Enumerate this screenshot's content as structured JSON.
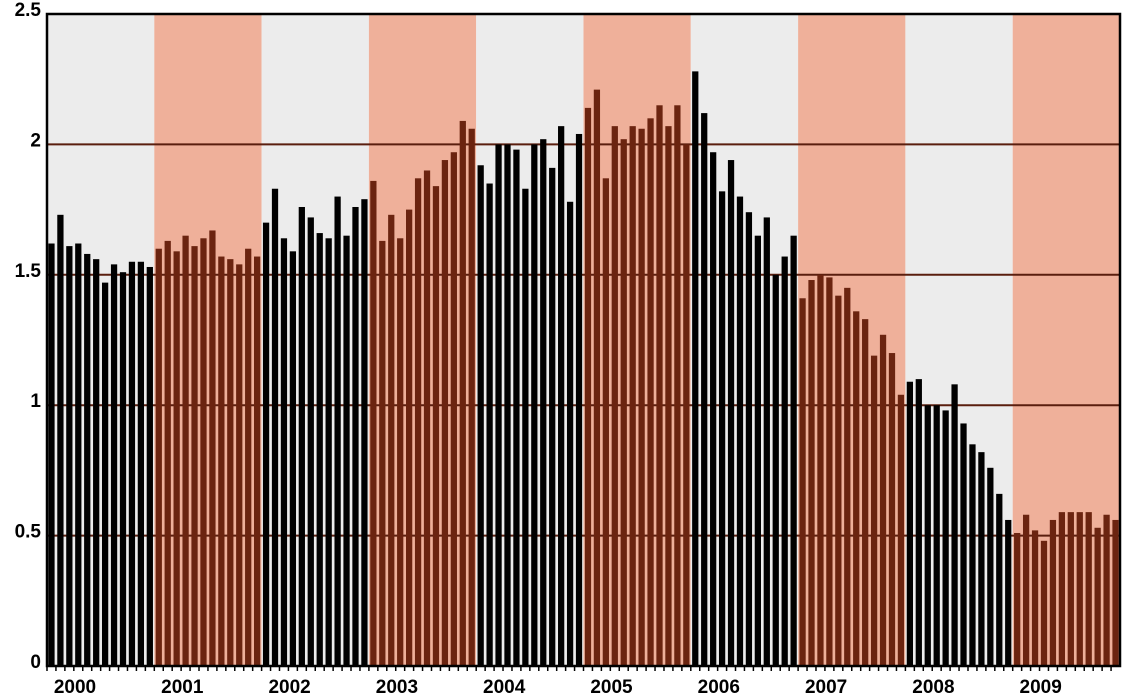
{
  "chart_data": {
    "type": "bar",
    "categories": [
      "2000",
      null,
      null,
      null,
      null,
      null,
      null,
      null,
      null,
      null,
      null,
      null,
      "2001",
      null,
      null,
      null,
      null,
      null,
      null,
      null,
      null,
      null,
      null,
      null,
      "2002",
      null,
      null,
      null,
      null,
      null,
      null,
      null,
      null,
      null,
      null,
      null,
      "2003",
      null,
      null,
      null,
      null,
      null,
      null,
      null,
      null,
      null,
      null,
      null,
      "2004",
      null,
      null,
      null,
      null,
      null,
      null,
      null,
      null,
      null,
      null,
      null,
      "2005",
      null,
      null,
      null,
      null,
      null,
      null,
      null,
      null,
      null,
      null,
      null,
      "2006",
      null,
      null,
      null,
      null,
      null,
      null,
      null,
      null,
      null,
      null,
      null,
      "2007",
      null,
      null,
      null,
      null,
      null,
      null,
      null,
      null,
      null,
      null,
      null,
      "2008",
      null,
      null,
      null,
      null,
      null,
      null,
      null,
      null,
      null,
      null,
      null,
      "2009",
      null,
      null,
      null,
      null,
      null,
      null,
      null,
      null,
      null,
      null,
      null
    ],
    "values": [
      1.62,
      1.73,
      1.61,
      1.62,
      1.58,
      1.56,
      1.47,
      1.54,
      1.51,
      1.55,
      1.55,
      1.53,
      1.6,
      1.63,
      1.59,
      1.65,
      1.61,
      1.64,
      1.67,
      1.57,
      1.56,
      1.54,
      1.6,
      1.57,
      1.7,
      1.83,
      1.64,
      1.59,
      1.76,
      1.72,
      1.66,
      1.64,
      1.8,
      1.65,
      1.76,
      1.79,
      1.86,
      1.63,
      1.73,
      1.64,
      1.75,
      1.87,
      1.9,
      1.84,
      1.94,
      1.97,
      2.09,
      2.06,
      1.92,
      1.85,
      2.0,
      2.0,
      1.98,
      1.83,
      2.0,
      2.02,
      1.91,
      2.07,
      1.78,
      2.04,
      2.14,
      2.21,
      1.87,
      2.07,
      2.02,
      2.07,
      2.06,
      2.1,
      2.15,
      2.07,
      2.15,
      2.0,
      2.28,
      2.12,
      1.97,
      1.82,
      1.94,
      1.8,
      1.74,
      1.65,
      1.72,
      1.5,
      1.57,
      1.65,
      1.41,
      1.48,
      1.5,
      1.49,
      1.42,
      1.45,
      1.36,
      1.33,
      1.19,
      1.27,
      1.2,
      1.04,
      1.09,
      1.1,
      1.0,
      1.0,
      0.98,
      1.08,
      0.93,
      0.85,
      0.82,
      0.76,
      0.66,
      0.56,
      0.51,
      0.58,
      0.52,
      0.48,
      0.56,
      0.59,
      0.59,
      0.59,
      0.59,
      0.53,
      0.58,
      0.56
    ],
    "bar_colors": [
      "#000000",
      "#6b2410"
    ],
    "band_colors": [
      "#ececec",
      "#efb09a"
    ],
    "ylim": [
      0,
      2.5
    ],
    "yticks": [
      0,
      0.5,
      1,
      1.5,
      2,
      2.5
    ],
    "grid": true
  }
}
